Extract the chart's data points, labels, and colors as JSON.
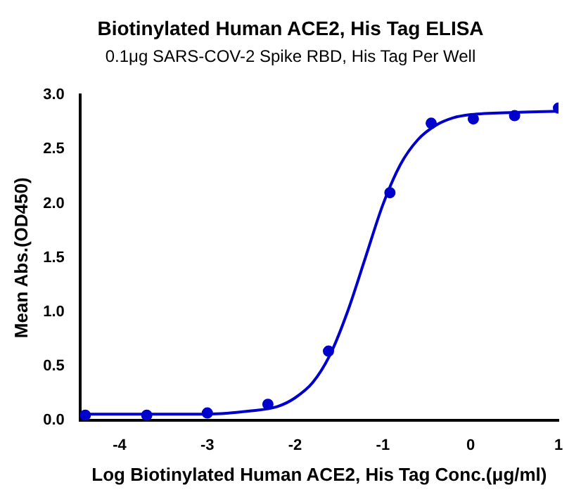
{
  "chart_data": {
    "type": "scatter",
    "title": "Biotinylated Human ACE2, His Tag ELISA",
    "subtitle": "0.1μg SARS-COV-2 Spike RBD, His Tag Per Well",
    "xlabel": "Log Biotinylated Human ACE2, His Tag Conc.(μg/ml)",
    "ylabel": "Mean Abs.(OD450)",
    "xlim": [
      -4.45,
      1
    ],
    "xticks": [
      -4,
      -3,
      -2,
      -1,
      0,
      1
    ],
    "ylim": [
      0,
      3
    ],
    "yticks": [
      {
        "value": 0,
        "label": "0.0"
      },
      {
        "value": 0.5,
        "label": "0.5"
      },
      {
        "value": 1,
        "label": "1.0"
      },
      {
        "value": 1.5,
        "label": "1.5"
      },
      {
        "value": 2,
        "label": "2.0"
      },
      {
        "value": 2.5,
        "label": "2.5"
      },
      {
        "value": 3,
        "label": "3.0"
      }
    ],
    "grid": false,
    "legend": false,
    "marker": "circle",
    "series": [
      {
        "type": "scatter",
        "color": "#0000cc",
        "x": [
          -4.39,
          -3.69,
          -3,
          -2.31,
          -1.62,
          -0.92,
          -0.45,
          0.03,
          0.5,
          1
        ],
        "values": [
          0.05,
          0.05,
          0.07,
          0.15,
          0.64,
          2.1,
          2.74,
          2.78,
          2.81,
          2.88
        ]
      },
      {
        "type": "line",
        "color": "#0000cc",
        "marker": "none",
        "x": [
          -4.4,
          -3.5,
          -3,
          -2.5,
          -2.2,
          -2,
          -1.8,
          -1.6,
          -1.4,
          -1.2,
          -1,
          -0.8,
          -0.6,
          -0.4,
          -0.2,
          0,
          0.5,
          1
        ],
        "values": [
          0.06,
          0.06,
          0.06,
          0.09,
          0.13,
          0.21,
          0.35,
          0.61,
          1.01,
          1.5,
          1.99,
          2.36,
          2.59,
          2.72,
          2.79,
          2.82,
          2.84,
          2.85
        ]
      }
    ]
  }
}
